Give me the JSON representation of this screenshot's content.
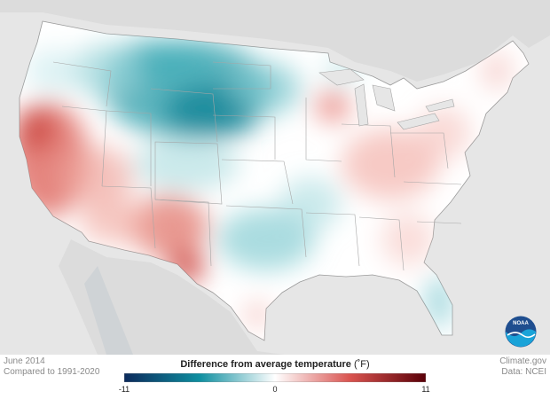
{
  "map": {
    "period": "June 2014",
    "baseline": "Compared to 1991-2020",
    "source_site": "Climate.gov",
    "source_data": "Data: NCEI",
    "logo_text": "NOAA"
  },
  "legend": {
    "title": "Difference from average temperature",
    "unit": "(˚F)",
    "min_label": "-11",
    "mid_label": "0",
    "max_label": "11",
    "colors": [
      "#0c2a5c",
      "#0f8fa0",
      "#ffffff",
      "#d9534f",
      "#5a0008"
    ]
  },
  "chart_data": {
    "type": "heatmap",
    "title": "Difference from average temperature",
    "scale_range": [
      -11,
      11
    ],
    "scale_unit": "˚F",
    "regions": [
      {
        "region": "Northern Plains / Montana / Dakotas",
        "anomaly": "cooler than average"
      },
      {
        "region": "Pacific Northwest",
        "anomaly": "slightly cooler"
      },
      {
        "region": "Southern Plains / Oklahoma",
        "anomaly": "slightly cooler"
      },
      {
        "region": "California / Great Basin",
        "anomaly": "warmer than average"
      },
      {
        "region": "Southwest / New Mexico / West Texas",
        "anomaly": "warmer than average"
      },
      {
        "region": "Ohio Valley / Mid-Atlantic",
        "anomaly": "slightly warmer"
      },
      {
        "region": "Northeast",
        "anomaly": "slightly warmer"
      },
      {
        "region": "Wisconsin",
        "anomaly": "warmer than average"
      },
      {
        "region": "Southeast",
        "anomaly": "slightly warmer"
      },
      {
        "region": "Florida",
        "anomaly": "slightly cooler"
      }
    ]
  }
}
